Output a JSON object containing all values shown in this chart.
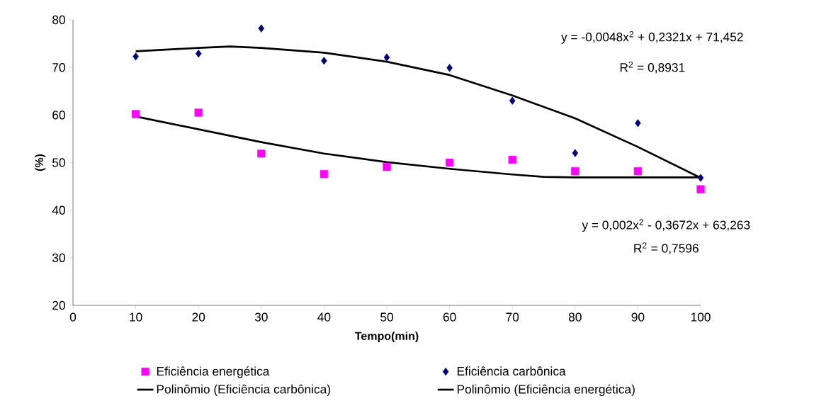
{
  "chart_data": {
    "type": "scatter",
    "xlabel": "Tempo(min)",
    "ylabel": "(%)",
    "xlim": [
      0,
      100
    ],
    "ylim": [
      20,
      80
    ],
    "xticks": [
      0,
      10,
      20,
      30,
      40,
      50,
      60,
      70,
      80,
      90,
      100
    ],
    "yticks": [
      20,
      30,
      40,
      50,
      60,
      70,
      80
    ],
    "legend": "bottom",
    "x": [
      10,
      20,
      30,
      40,
      50,
      60,
      70,
      80,
      90,
      100
    ],
    "series": [
      {
        "name": "Eficiência energética",
        "color": "#ff00ff",
        "marker": "square",
        "values": [
          60.2,
          60.5,
          51.9,
          47.6,
          49.1,
          50.0,
          50.6,
          48.2,
          48.2,
          44.4
        ]
      },
      {
        "name": "Eficiência carbônica",
        "color": "#000080",
        "marker": "diamond",
        "values": [
          72.3,
          72.9,
          78.2,
          71.4,
          72.1,
          69.9,
          63.0,
          52.0,
          58.3,
          46.8
        ]
      },
      {
        "name": "Polinômio (Eficiência carbônica)",
        "type": "line",
        "color": "#000000",
        "x": [
          10,
          20,
          25,
          30,
          40,
          50,
          60,
          70,
          80,
          90,
          100
        ],
        "values": [
          73.4,
          74.1,
          74.4,
          74.1,
          73.1,
          71.2,
          68.4,
          64.1,
          59.3,
          53.3,
          46.8
        ]
      },
      {
        "name": "Polinômio (Eficiência energética)",
        "type": "line",
        "color": "#000000",
        "x": [
          10,
          20,
          30,
          40,
          50,
          60,
          70,
          75,
          80,
          100
        ],
        "values": [
          59.7,
          57.0,
          54.3,
          51.9,
          50.1,
          48.7,
          47.5,
          47.0,
          46.9,
          46.9
        ]
      }
    ],
    "annotations": [
      "y = -0,0048x$^{2}$ + 0,2321x + 71,452",
      "R$^{2}$ = 0,8931",
      "y = 0,002x$^{2}$ - 0,3672x + 63,263",
      "R$^{2}$ = 0,7596"
    ]
  }
}
